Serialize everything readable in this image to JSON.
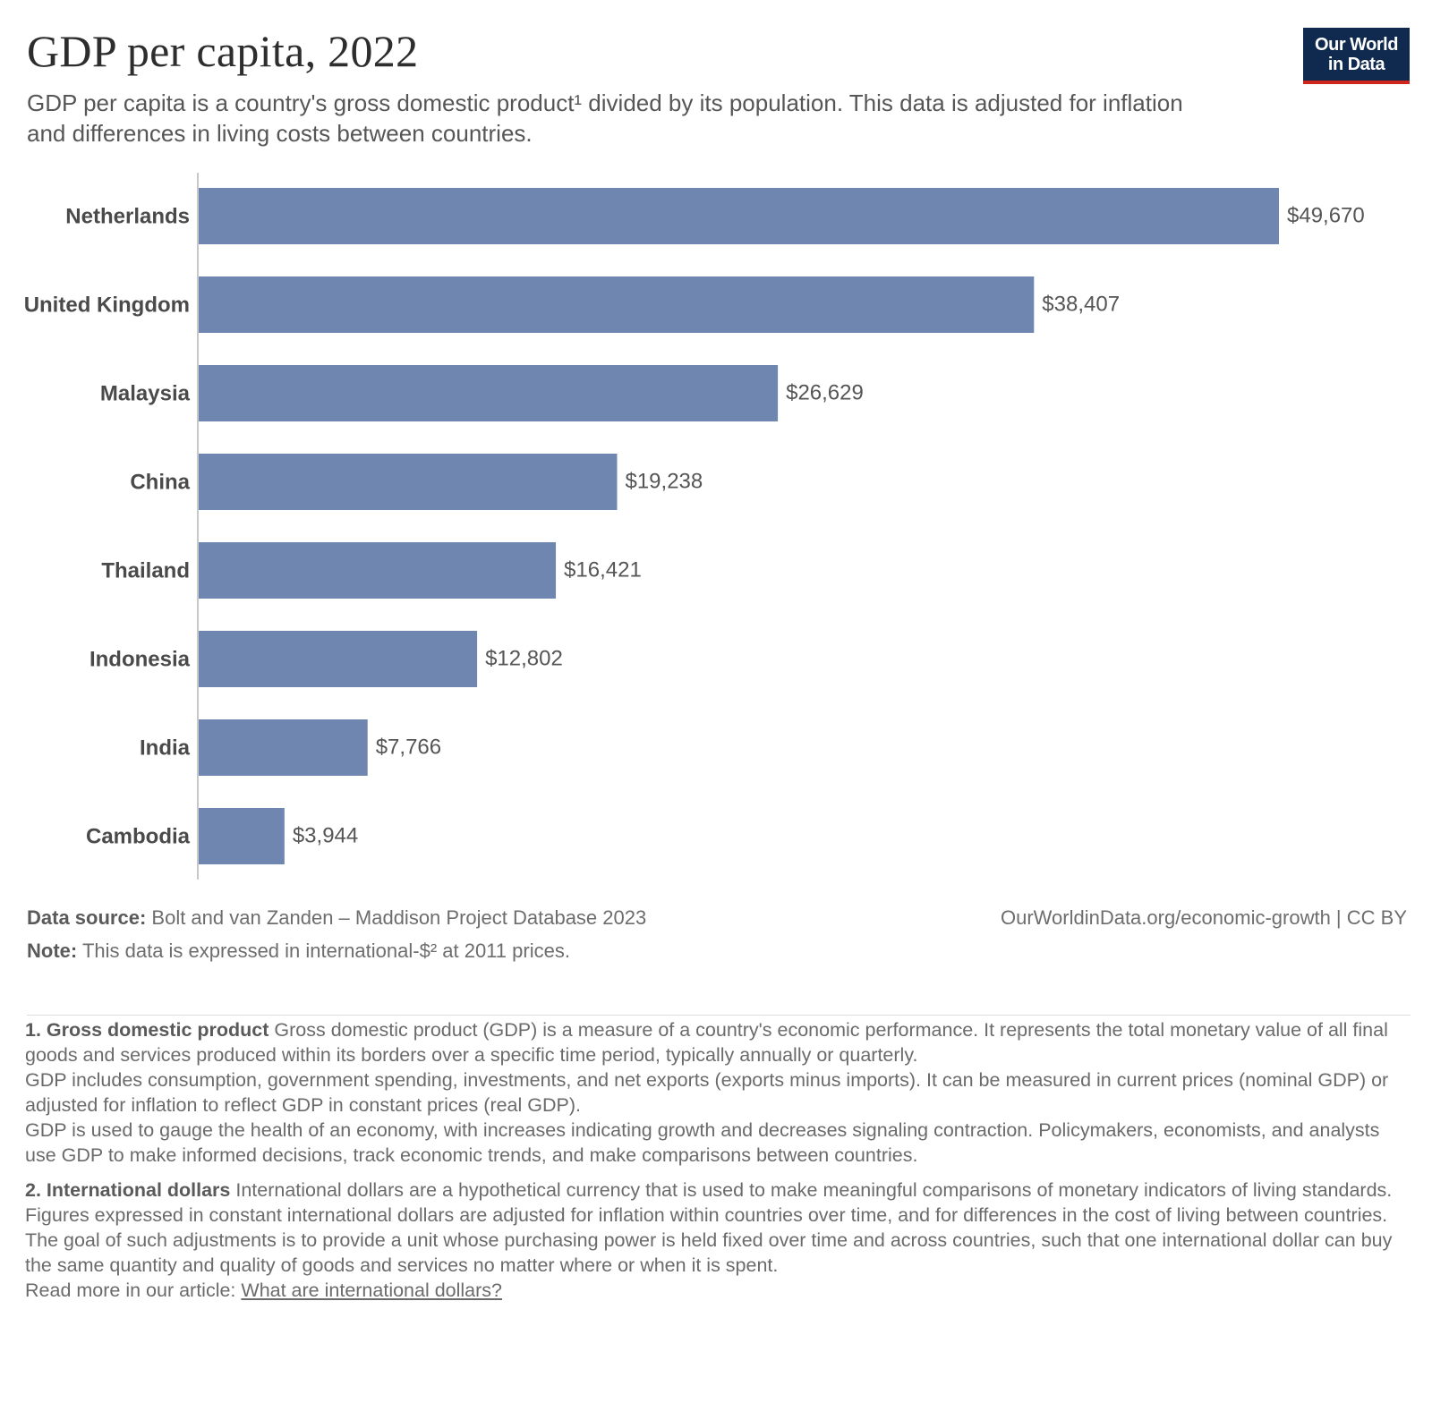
{
  "header": {
    "title": "GDP per capita, 2022",
    "subtitle": "GDP per capita is a country's gross domestic product¹ divided by its population. This data is adjusted for inflation and differences in living costs between countries.",
    "logo_line1": "Our World",
    "logo_line2": "in Data"
  },
  "colors": {
    "bar": "#6f86b0",
    "logo_bg": "#0f2a4e",
    "logo_accent": "#ce261e"
  },
  "chart_data": {
    "type": "bar",
    "orientation": "horizontal",
    "title": "GDP per capita, 2022",
    "xlabel": "",
    "ylabel": "",
    "xlim": [
      0,
      49670
    ],
    "grid": false,
    "categories": [
      "Netherlands",
      "United Kingdom",
      "Malaysia",
      "China",
      "Thailand",
      "Indonesia",
      "India",
      "Cambodia"
    ],
    "values": [
      49670,
      38407,
      26629,
      19238,
      16421,
      12802,
      7766,
      3944
    ],
    "value_labels": [
      "$49,670",
      "$38,407",
      "$26,629",
      "$19,238",
      "$16,421",
      "$12,802",
      "$7,766",
      "$3,944"
    ]
  },
  "footer": {
    "source_label": "Data source:",
    "source_text": "Bolt and van Zanden – Maddison Project Database 2023",
    "attribution": "OurWorldinData.org/economic-growth | CC BY",
    "note_label": "Note:",
    "note_text": "This data is expressed in international-$² at 2011 prices."
  },
  "footnotes": {
    "n1_title": "1. Gross domestic product",
    "n1_p1": "Gross domestic product (GDP) is a measure of a country's economic performance. It represents the total monetary value of all final goods and services produced within its borders over a specific time period, typically annually or quarterly.",
    "n1_p2": "GDP includes consumption, government spending, investments, and net exports (exports minus imports). It can be measured in current prices (nominal GDP) or adjusted for inflation to reflect GDP in constant prices (real GDP).",
    "n1_p3": "GDP is used to gauge the health of an economy, with increases indicating growth and decreases signaling contraction. Policymakers, economists, and analysts use GDP to make informed decisions, track economic trends, and make comparisons between countries.",
    "n2_title": "2. International dollars",
    "n2_p1": "International dollars are a hypothetical currency that is used to make meaningful comparisons of monetary indicators of living standards.",
    "n2_p2": "Figures expressed in constant international dollars are adjusted for inflation within countries over time, and for differences in the cost of living between countries.",
    "n2_p3": "The goal of such adjustments is to provide a unit whose purchasing power is held fixed over time and across countries, such that one international dollar can buy the same quantity and quality of goods and services no matter where or when it is spent.",
    "read_more_prefix": "Read more in our article:",
    "read_more_link": "What are international dollars?"
  }
}
